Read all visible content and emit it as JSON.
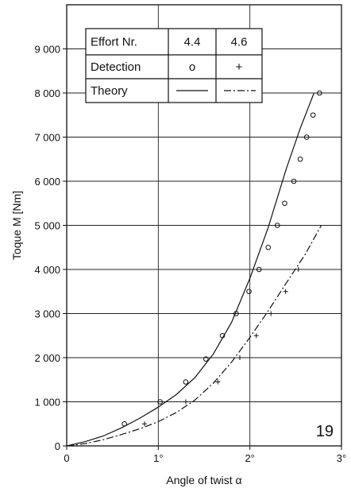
{
  "chart_data": {
    "type": "scatter",
    "xlabel": "Angle of twist α",
    "ylabel": "Toque M [Nm]",
    "figure_number": "19",
    "xlim": [
      0,
      3
    ],
    "ylim": [
      0,
      10000
    ],
    "x_ticks": [
      0,
      1,
      2,
      3
    ],
    "x_tick_labels": [
      "0",
      "1°",
      "2°",
      "3°"
    ],
    "y_ticks": [
      0,
      1000,
      2000,
      3000,
      4000,
      5000,
      6000,
      7000,
      8000,
      9000
    ],
    "y_tick_labels": [
      "0",
      "1 000",
      "2 000",
      "3 000",
      "4 000",
      "5 000",
      "6 000",
      "7 000",
      "8 000",
      "9 000"
    ],
    "grid": true,
    "legend_table": {
      "headers": [
        "Effort Nr.",
        "4.4",
        "4.6"
      ],
      "detection_label": "Detection",
      "detection_symbols": [
        "o",
        "+"
      ],
      "theory_label": "Theory"
    },
    "series": [
      {
        "marker": "o",
        "x": [
          0.63,
          1.02,
          1.3,
          1.52,
          1.7,
          1.85,
          1.99,
          2.1,
          2.2,
          2.3,
          2.38,
          2.48,
          2.55,
          2.62,
          2.69,
          2.76
        ],
        "y": [
          500,
          1000,
          1450,
          1970,
          2500,
          3000,
          3500,
          4000,
          4500,
          5000,
          5500,
          6000,
          6500,
          7000,
          7500,
          8000
        ]
      },
      {
        "marker": "+",
        "x": [
          0.85,
          1.3,
          1.65,
          1.89,
          2.07,
          2.23,
          2.39,
          2.53
        ],
        "y": [
          500,
          1000,
          1450,
          2000,
          2500,
          3000,
          3500,
          4000
        ]
      }
    ],
    "theory_curves": [
      {
        "style": "solid",
        "x": [
          0,
          0.2,
          0.4,
          0.6,
          0.8,
          1.0,
          1.2,
          1.4,
          1.6,
          1.8,
          2.0,
          2.2,
          2.4,
          2.55,
          2.7
        ],
        "y": [
          0,
          95,
          225,
          410,
          630,
          880,
          1170,
          1550,
          2080,
          2800,
          3800,
          4950,
          6300,
          7200,
          8000
        ]
      },
      {
        "style": "dashdot",
        "x": [
          0,
          0.2,
          0.4,
          0.6,
          0.8,
          1.0,
          1.2,
          1.4,
          1.6,
          1.8,
          2.0,
          2.2,
          2.4,
          2.6,
          2.78
        ],
        "y": [
          0,
          50,
          140,
          260,
          390,
          550,
          760,
          1040,
          1420,
          1900,
          2460,
          3060,
          3700,
          4330,
          5000
        ]
      }
    ]
  }
}
